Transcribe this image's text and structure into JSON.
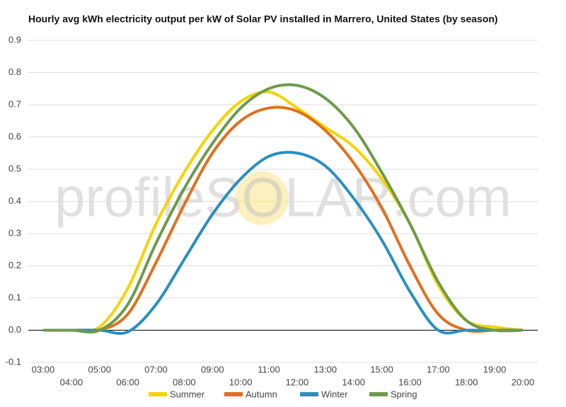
{
  "chart_data": {
    "type": "line",
    "title": "Hourly avg kWh electricity output per kW of Solar PV installed in Marrero, United States (by season)",
    "watermark": "profileSOLAR.com",
    "categories": [
      "03:00",
      "04:00",
      "05:00",
      "06:00",
      "07:00",
      "08:00",
      "09:00",
      "10:00",
      "11:00",
      "12:00",
      "13:00",
      "14:00",
      "15:00",
      "16:00",
      "17:00",
      "18:00",
      "19:00",
      "20:00"
    ],
    "series": [
      {
        "name": "Summer",
        "color": "#f5d300",
        "values": [
          0,
          0,
          0.01,
          0.13,
          0.33,
          0.49,
          0.62,
          0.71,
          0.74,
          0.69,
          0.63,
          0.57,
          0.47,
          0.33,
          0.14,
          0.03,
          0.01,
          0
        ]
      },
      {
        "name": "Autumn",
        "color": "#e0701e",
        "values": [
          0,
          0,
          0,
          0.05,
          0.21,
          0.39,
          0.55,
          0.65,
          0.69,
          0.68,
          0.62,
          0.52,
          0.38,
          0.2,
          0.05,
          0,
          0,
          0
        ]
      },
      {
        "name": "Winter",
        "color": "#2a8fc0",
        "values": [
          0,
          0,
          0,
          -0.005,
          0.08,
          0.22,
          0.36,
          0.47,
          0.54,
          0.55,
          0.51,
          0.41,
          0.28,
          0.12,
          0,
          0,
          0,
          0
        ]
      },
      {
        "name": "Spring",
        "color": "#6d9b4a",
        "values": [
          0,
          0,
          0,
          0.08,
          0.27,
          0.44,
          0.58,
          0.69,
          0.75,
          0.76,
          0.72,
          0.63,
          0.49,
          0.33,
          0.15,
          0.03,
          0,
          0
        ]
      }
    ],
    "ylim": [
      -0.1,
      0.9
    ],
    "yticks": [
      -0.1,
      {
        "value": 0,
        "label": "0.0"
      },
      0.1,
      0.2,
      0.3,
      0.4,
      0.5,
      0.6,
      0.7,
      0.8,
      0.9
    ],
    "grid": true
  }
}
